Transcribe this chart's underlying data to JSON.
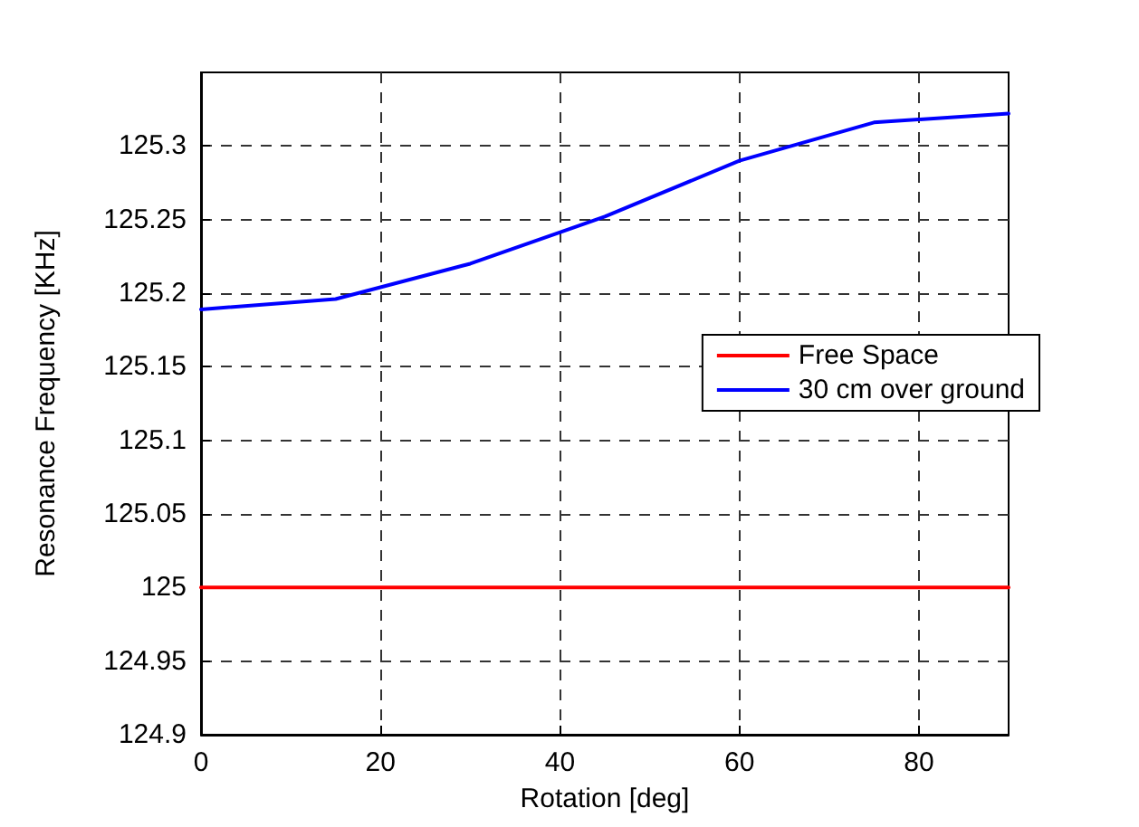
{
  "chart_data": {
    "type": "line",
    "xlabel": "Rotation [deg]",
    "ylabel": "Resonance Frequency [KHz]",
    "x": [
      0,
      15,
      30,
      45,
      60,
      75,
      90
    ],
    "series": [
      {
        "name": "Free Space",
        "color": "#ff0000",
        "values": [
          125,
          125,
          125,
          125,
          125,
          125,
          125
        ]
      },
      {
        "name": "30 cm over ground",
        "color": "#0000ff",
        "values": [
          125.189,
          125.196,
          125.22,
          125.252,
          125.29,
          125.316,
          125.322
        ]
      }
    ],
    "xlim": [
      0,
      90
    ],
    "xticks": [
      0,
      20,
      40,
      60,
      80
    ],
    "ylim": [
      124.9,
      125.35
    ],
    "yticks": [
      124.9,
      124.95,
      125,
      125.05,
      125.1,
      125.15,
      125.2,
      125.25,
      125.3
    ],
    "grid": true,
    "legend": "right",
    "marker": "none",
    "line_style": "solid"
  }
}
